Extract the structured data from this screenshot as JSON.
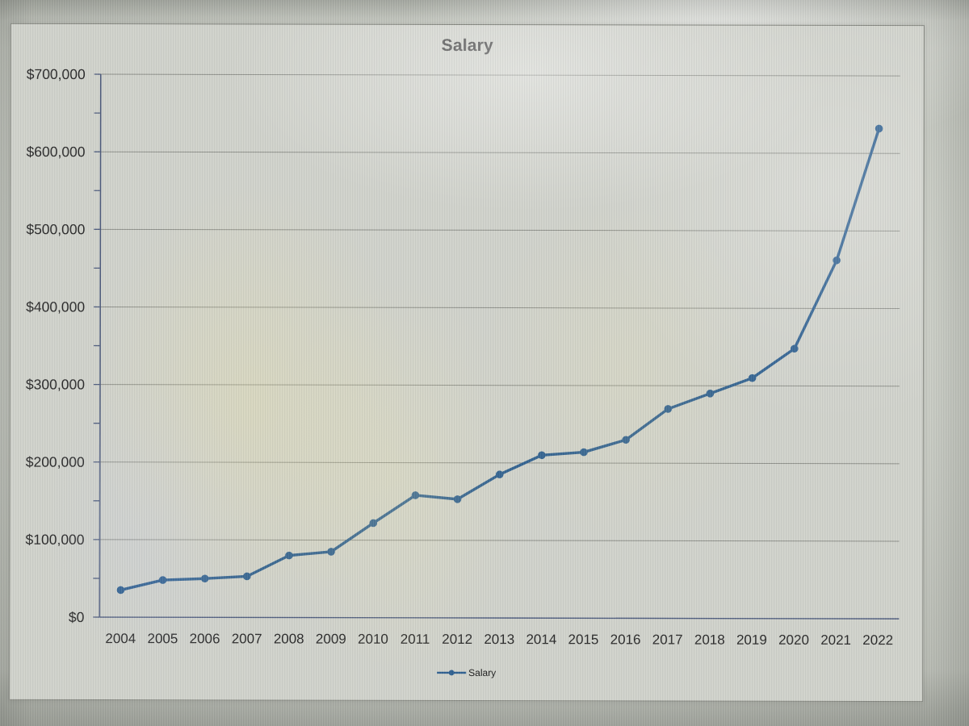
{
  "chart_data": {
    "type": "line",
    "title": "Salary",
    "legend_label": "Salary",
    "legend_position": "bottom",
    "categories": [
      "2004",
      "2005",
      "2006",
      "2007",
      "2008",
      "2009",
      "2010",
      "2011",
      "2012",
      "2013",
      "2014",
      "2015",
      "2016",
      "2017",
      "2018",
      "2019",
      "2020",
      "2021",
      "2022"
    ],
    "series": [
      {
        "name": "Salary",
        "values": [
          35000,
          48000,
          50000,
          53000,
          80000,
          85000,
          122000,
          158000,
          153000,
          185000,
          210000,
          214000,
          230000,
          270000,
          290000,
          310000,
          348000,
          462000,
          632000
        ]
      }
    ],
    "ylim": [
      0,
      700000
    ],
    "y_major_step": 100000,
    "y_minor_step": 50000,
    "y_tick_labels": [
      "$0",
      "$100,000",
      "$200,000",
      "$300,000",
      "$400,000",
      "$500,000",
      "$600,000",
      "$700,000"
    ],
    "grid": "horizontal-major",
    "line_color": "#2f6090",
    "marker": "circle",
    "gridline_color": "#8e908a",
    "axis_color": "#4f5d7e",
    "tick_label_color": "#2b2b2b",
    "title_color": "#434343"
  }
}
